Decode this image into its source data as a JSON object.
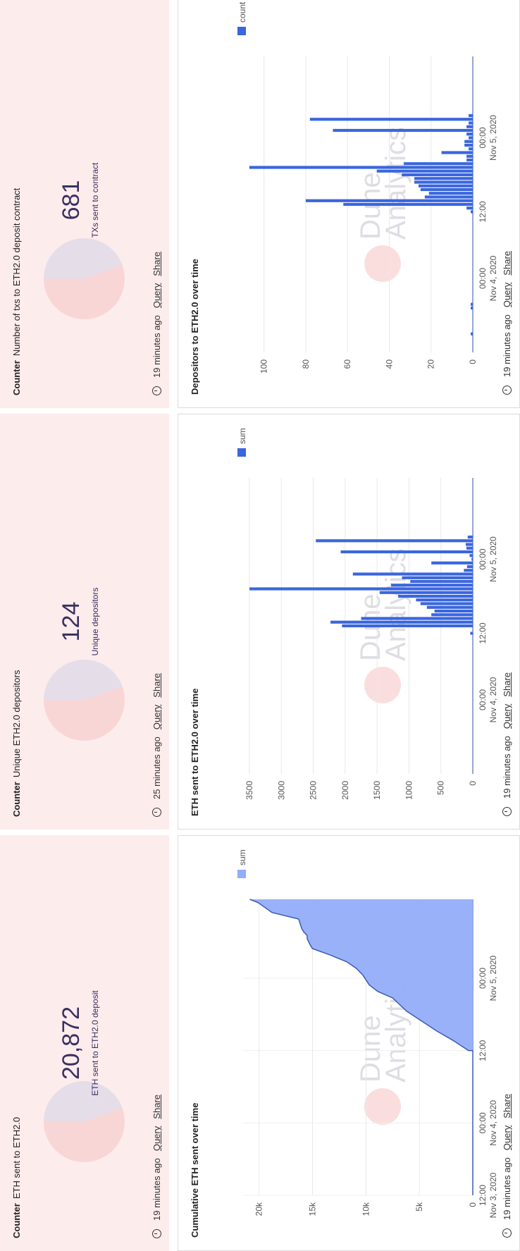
{
  "widgets": [
    {
      "type": "counter",
      "kind": "Counter",
      "title": "ETH sent to ETH2.0",
      "value": "20,872",
      "label": "ETH sent to ETH2.0 deposit",
      "updated": "19 minutes ago",
      "query_link": "Query",
      "share_link": "Share"
    },
    {
      "type": "counter",
      "kind": "Counter",
      "title": "Unique ETH2.0 depositors",
      "value": "124",
      "label": "Unique depositors",
      "updated": "25 minutes ago",
      "query_link": "Query",
      "share_link": "Share"
    },
    {
      "type": "counter",
      "kind": "Counter",
      "title": "Number of txs to ETH2.0 deposit contract",
      "value": "681",
      "label": "TXs sent to contract",
      "updated": "19 minutes ago",
      "query_link": "Query",
      "share_link": "Share"
    },
    {
      "type": "chart",
      "title": "Cumulative ETH sent over time",
      "updated": "19 minutes ago",
      "query_link": "Query",
      "share_link": "Share"
    },
    {
      "type": "chart",
      "title": "ETH sent to ETH2.0 over time",
      "updated": "19 minutes ago",
      "query_link": "Query",
      "share_link": "Share"
    },
    {
      "type": "chart",
      "title": "Depositors to ETH2.0 over time",
      "updated": "19 minutes ago",
      "query_link": "Query",
      "share_link": "Share"
    }
  ],
  "watermark": {
    "line1": "Dune",
    "line2": "Analytics"
  },
  "colors": {
    "counter_bg": "#fdecec",
    "bar": "#3a66de",
    "area": "#92adf9",
    "line": "#3a5bb8"
  },
  "chart_data": [
    {
      "type": "area",
      "title": "Cumulative ETH sent over time",
      "legend": [
        "sum"
      ],
      "x_ticks": [
        "12:00\nNov 3, 2020",
        "00:00\nNov 4, 2020",
        "12:00",
        "00:00\nNov 5, 2020"
      ],
      "x_tick_pos": [
        0,
        0.22,
        0.44,
        0.66
      ],
      "x_range": [
        0,
        0.9
      ],
      "y_ticks": [
        "0",
        "5k",
        "10k",
        "15k",
        "20k"
      ],
      "y_tick_vals": [
        0,
        5000,
        10000,
        15000,
        20000
      ],
      "ylim": [
        0,
        21500
      ],
      "points": [
        [
          0.0,
          0
        ],
        [
          0.44,
          0
        ],
        [
          0.44,
          400
        ],
        [
          0.47,
          1800
        ],
        [
          0.5,
          3400
        ],
        [
          0.53,
          4800
        ],
        [
          0.56,
          6200
        ],
        [
          0.6,
          7500
        ],
        [
          0.62,
          8900
        ],
        [
          0.64,
          9700
        ],
        [
          0.67,
          10300
        ],
        [
          0.69,
          10900
        ],
        [
          0.71,
          11800
        ],
        [
          0.73,
          13300
        ],
        [
          0.75,
          15000
        ],
        [
          0.76,
          15200
        ],
        [
          0.78,
          15500
        ],
        [
          0.79,
          15500
        ],
        [
          0.8,
          15800
        ],
        [
          0.81,
          16000
        ],
        [
          0.83,
          16200
        ],
        [
          0.84,
          16300
        ],
        [
          0.86,
          18800
        ],
        [
          0.89,
          20100
        ],
        [
          0.9,
          20872
        ]
      ]
    },
    {
      "type": "bar",
      "title": "ETH sent to ETH2.0 over time",
      "legend": [
        "sum"
      ],
      "x_ticks": [
        "00:00\nNov 4, 2020",
        "12:00",
        "00:00\nNov 5, 2020"
      ],
      "x_tick_pos": [
        0.2,
        0.38,
        0.58
      ],
      "x_range": [
        0,
        0.8
      ],
      "y_ticks": [
        "0",
        "500",
        "1000",
        "1500",
        "2000",
        "2500",
        "3000",
        "3500"
      ],
      "y_tick_vals": [
        0,
        500,
        1000,
        1500,
        2000,
        2500,
        3000,
        3500
      ],
      "ylim": [
        0,
        3600
      ],
      "bars": [
        [
          0.38,
          40
        ],
        [
          0.4,
          2050
        ],
        [
          0.41,
          2230
        ],
        [
          0.42,
          1750
        ],
        [
          0.43,
          650
        ],
        [
          0.44,
          600
        ],
        [
          0.45,
          720
        ],
        [
          0.46,
          820
        ],
        [
          0.47,
          890
        ],
        [
          0.48,
          1170
        ],
        [
          0.49,
          1460
        ],
        [
          0.5,
          3500
        ],
        [
          0.51,
          1280
        ],
        [
          0.52,
          980
        ],
        [
          0.53,
          1110
        ],
        [
          0.54,
          1880
        ],
        [
          0.55,
          140
        ],
        [
          0.56,
          90
        ],
        [
          0.57,
          650
        ],
        [
          0.58,
          20
        ],
        [
          0.59,
          50
        ],
        [
          0.6,
          2070
        ],
        [
          0.61,
          100
        ],
        [
          0.62,
          110
        ],
        [
          0.63,
          2460
        ],
        [
          0.64,
          80
        ]
      ]
    },
    {
      "type": "bar",
      "title": "Depositors to ETH2.0 over time",
      "legend": [
        "count"
      ],
      "x_ticks": [
        "00:00\nNov 4, 2020",
        "12:00",
        "00:00\nNov 5, 2020"
      ],
      "x_tick_pos": [
        0.2,
        0.38,
        0.58
      ],
      "x_range": [
        0,
        0.8
      ],
      "y_ticks": [
        "0",
        "20",
        "40",
        "60",
        "80",
        "100"
      ],
      "y_tick_vals": [
        0,
        20,
        40,
        60,
        80,
        100
      ],
      "ylim": [
        0,
        110
      ],
      "bars": [
        [
          0.05,
          1
        ],
        [
          0.12,
          1
        ],
        [
          0.13,
          1
        ],
        [
          0.38,
          1
        ],
        [
          0.39,
          3
        ],
        [
          0.4,
          62
        ],
        [
          0.41,
          80
        ],
        [
          0.42,
          23
        ],
        [
          0.43,
          21
        ],
        [
          0.44,
          25
        ],
        [
          0.45,
          26
        ],
        [
          0.46,
          28
        ],
        [
          0.47,
          28
        ],
        [
          0.48,
          34
        ],
        [
          0.49,
          46
        ],
        [
          0.5,
          107
        ],
        [
          0.51,
          33
        ],
        [
          0.52,
          3
        ],
        [
          0.53,
          3
        ],
        [
          0.54,
          15
        ],
        [
          0.55,
          2
        ],
        [
          0.56,
          4
        ],
        [
          0.57,
          4
        ],
        [
          0.58,
          2
        ],
        [
          0.59,
          3
        ],
        [
          0.6,
          67
        ],
        [
          0.61,
          3
        ],
        [
          0.62,
          2
        ],
        [
          0.63,
          78
        ],
        [
          0.64,
          2
        ]
      ]
    }
  ]
}
